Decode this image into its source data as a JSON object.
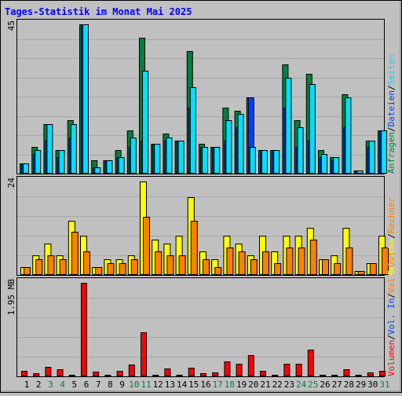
{
  "title": "Tages-Statistik im Monat Mai 2025",
  "colors": {
    "background": "#c0c0c0",
    "title": "#0000ff",
    "hits": "#008040",
    "files": "#0040ff",
    "pages": "#00e0ff",
    "visits": "#ffff00",
    "sites": "#ff8000",
    "kbytes": "#ff0000",
    "weekend_label": "#008040",
    "weekday_label": "#000000"
  },
  "chart_data": [
    {
      "type": "bar",
      "panel": "top",
      "scale_label": "45",
      "ylim": [
        0,
        45
      ],
      "right_legend": [
        {
          "text": "Anfragen",
          "color": "#008040"
        },
        {
          "text": "Dateien",
          "color": "#0040ff"
        },
        {
          "text": "Seiten",
          "color": "#00e0ff"
        }
      ],
      "categories": [
        "1",
        "2",
        "3",
        "4",
        "5",
        "6",
        "7",
        "8",
        "9",
        "10",
        "11",
        "12",
        "13",
        "14",
        "15",
        "16",
        "17",
        "18",
        "19",
        "20",
        "21",
        "22",
        "23",
        "24",
        "25",
        "26",
        "27",
        "28",
        "29",
        "30",
        "31"
      ],
      "series": [
        {
          "name": "Anfragen",
          "values": [
            3,
            8,
            15,
            7,
            16,
            45,
            4,
            4,
            7,
            13,
            41,
            9,
            12,
            10,
            37,
            9,
            8,
            20,
            19,
            23,
            7,
            7,
            33,
            16,
            30,
            7,
            5,
            24,
            1,
            10,
            13
          ]
        },
        {
          "name": "Dateien",
          "values": [
            3,
            6,
            10,
            5,
            11,
            45,
            2,
            4,
            5,
            8,
            10,
            9,
            10,
            10,
            20,
            8,
            8,
            10,
            14,
            23,
            7,
            7,
            20,
            8,
            10,
            5,
            4,
            14,
            1,
            8,
            13
          ]
        },
        {
          "name": "Seiten",
          "values": [
            3,
            7,
            15,
            7,
            15,
            45,
            2,
            4,
            5,
            11,
            31,
            9,
            11,
            10,
            26,
            8,
            8,
            16,
            18,
            8,
            7,
            7,
            29,
            14,
            27,
            6,
            5,
            23,
            1,
            10,
            13
          ]
        }
      ]
    },
    {
      "type": "bar",
      "panel": "middle",
      "scale_label": "24",
      "ylim": [
        0,
        24
      ],
      "right_legend": [
        {
          "text": "Besuche",
          "color": "#ffff00"
        },
        {
          "text": "Rechner",
          "color": "#ff8000"
        }
      ],
      "categories": [
        "1",
        "2",
        "3",
        "4",
        "5",
        "6",
        "7",
        "8",
        "9",
        "10",
        "11",
        "12",
        "13",
        "14",
        "15",
        "16",
        "17",
        "18",
        "19",
        "20",
        "21",
        "22",
        "23",
        "24",
        "25",
        "26",
        "27",
        "28",
        "29",
        "30",
        "31"
      ],
      "series": [
        {
          "name": "Besuche",
          "values": [
            2,
            5,
            8,
            5,
            14,
            10,
            2,
            4,
            4,
            5,
            24,
            9,
            8,
            10,
            20,
            6,
            4,
            10,
            8,
            5,
            10,
            6,
            10,
            10,
            12,
            4,
            5,
            12,
            1,
            3,
            10
          ]
        },
        {
          "name": "Rechner",
          "values": [
            2,
            4,
            5,
            4,
            11,
            6,
            2,
            3,
            3,
            4,
            15,
            6,
            5,
            5,
            14,
            4,
            2,
            7,
            6,
            4,
            6,
            3,
            7,
            7,
            9,
            4,
            3,
            7,
            1,
            3,
            7
          ]
        }
      ]
    },
    {
      "type": "bar",
      "panel": "bottom",
      "scale_label": "1.95 MB",
      "unit": "MB",
      "ylim": [
        0,
        1.95
      ],
      "right_legend": [
        {
          "text": "Volumen",
          "color": "#ff0000"
        },
        {
          "text": "Vol. In",
          "color": "#0040ff"
        },
        {
          "text": "Vol. Out",
          "color": "#ff8000"
        }
      ],
      "categories": [
        "1",
        "2",
        "3",
        "4",
        "5",
        "6",
        "7",
        "8",
        "9",
        "10",
        "11",
        "12",
        "13",
        "14",
        "15",
        "16",
        "17",
        "18",
        "19",
        "20",
        "21",
        "22",
        "23",
        "24",
        "25",
        "26",
        "27",
        "28",
        "29",
        "30",
        "31"
      ],
      "series": [
        {
          "name": "Volumen",
          "values": [
            0.12,
            0.06,
            0.2,
            0.14,
            0.04,
            1.95,
            0.1,
            0.03,
            0.12,
            0.25,
            0.92,
            0.04,
            0.16,
            0.04,
            0.18,
            0.06,
            0.08,
            0.31,
            0.26,
            0.44,
            0.12,
            0.04,
            0.26,
            0.26,
            0.56,
            0.04,
            0.04,
            0.15,
            0.04,
            0.08,
            0.12
          ]
        }
      ]
    }
  ],
  "x_labels": [
    {
      "text": "1",
      "weekend": false
    },
    {
      "text": "2",
      "weekend": false
    },
    {
      "text": "3",
      "weekend": true
    },
    {
      "text": "4",
      "weekend": true
    },
    {
      "text": "5",
      "weekend": false
    },
    {
      "text": "6",
      "weekend": false
    },
    {
      "text": "7",
      "weekend": false
    },
    {
      "text": "8",
      "weekend": false
    },
    {
      "text": "9",
      "weekend": false
    },
    {
      "text": "10",
      "weekend": true
    },
    {
      "text": "11",
      "weekend": true
    },
    {
      "text": "12",
      "weekend": false
    },
    {
      "text": "13",
      "weekend": false
    },
    {
      "text": "14",
      "weekend": false
    },
    {
      "text": "15",
      "weekend": false
    },
    {
      "text": "16",
      "weekend": false
    },
    {
      "text": "17",
      "weekend": true
    },
    {
      "text": "18",
      "weekend": true
    },
    {
      "text": "19",
      "weekend": false
    },
    {
      "text": "20",
      "weekend": false
    },
    {
      "text": "21",
      "weekend": false
    },
    {
      "text": "22",
      "weekend": false
    },
    {
      "text": "23",
      "weekend": false
    },
    {
      "text": "24",
      "weekend": true
    },
    {
      "text": "25",
      "weekend": true
    },
    {
      "text": "26",
      "weekend": false
    },
    {
      "text": "27",
      "weekend": false
    },
    {
      "text": "28",
      "weekend": false
    },
    {
      "text": "29",
      "weekend": false
    },
    {
      "text": "30",
      "weekend": false
    },
    {
      "text": "31",
      "weekend": true
    }
  ]
}
